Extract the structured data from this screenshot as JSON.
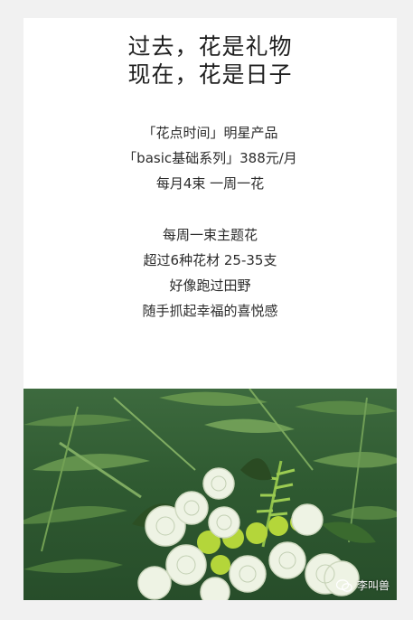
{
  "headline": {
    "line1": "过去，花是礼物",
    "line2": "现在，花是日子"
  },
  "product": {
    "line1": "「花点时间」明星产品",
    "line2": "「basic基础系列」388元/月",
    "line3": "每月4束  一周一花"
  },
  "details": {
    "line1": "每周一束主题花",
    "line2": "超过6种花材  25-35支",
    "line3": "好像跑过田野",
    "line4": "随手抓起幸福的喜悦感"
  },
  "watermark": {
    "text": "李叫兽",
    "icon": "wechat-icon"
  },
  "colors": {
    "page_bg": "#f1f1f1",
    "card_bg": "#ffffff",
    "leaf_dark": "#2f5a31",
    "leaf_light": "#7fae5a",
    "rose_white": "#eef3e4",
    "chrysanthemum": "#b4d63a"
  }
}
